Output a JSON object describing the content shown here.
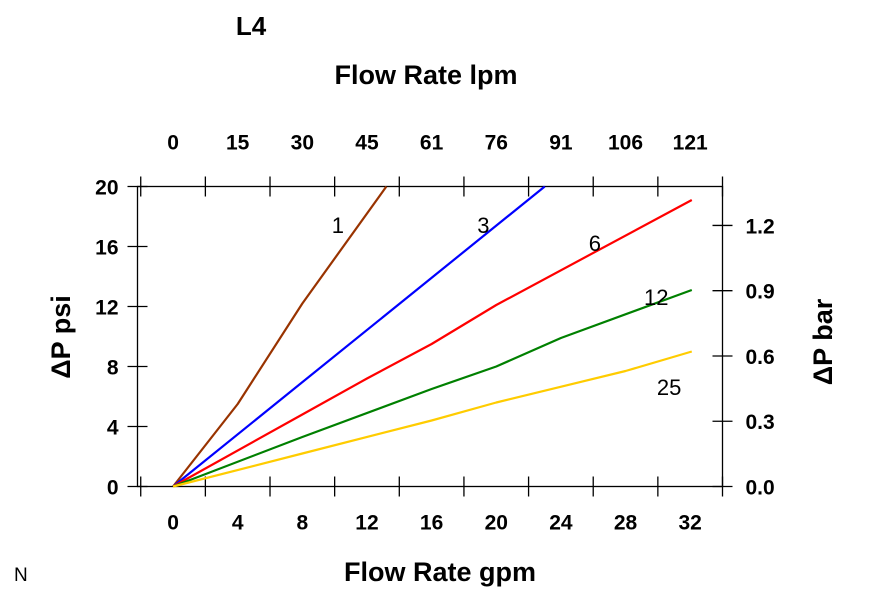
{
  "chart_data": {
    "type": "line",
    "title": "L4",
    "corner_label": "N",
    "xlabel": "Flow Rate gpm",
    "x2label": "Flow Rate lpm",
    "ylabel": "ΔP psi",
    "y2label": "ΔP bar",
    "xlim": [
      -2.2,
      34
    ],
    "ylim": [
      0,
      20
    ],
    "x_ticks": [
      0,
      4,
      8,
      12,
      16,
      20,
      24,
      28,
      32
    ],
    "x_tick_labels": [
      "0",
      "4",
      "8",
      "12",
      "16",
      "20",
      "24",
      "28",
      "32"
    ],
    "x2_tick_labels": [
      "0",
      "15",
      "30",
      "45",
      "61",
      "76",
      "91",
      "106",
      "121"
    ],
    "y_ticks": [
      0,
      4,
      8,
      12,
      16,
      20
    ],
    "y_tick_labels": [
      "0",
      "4",
      "8",
      "12",
      "16",
      "20"
    ],
    "y2_ticks_bar": [
      0.0,
      0.3,
      0.6,
      0.9,
      1.2
    ],
    "y2_tick_labels": [
      "0.0",
      "0.3",
      "0.6",
      "0.9",
      "1.2"
    ],
    "grid": false,
    "series": [
      {
        "name": "1",
        "color": "#993300",
        "x": [
          0,
          4,
          8,
          13.2
        ],
        "y": [
          0,
          5.5,
          12.2,
          20
        ]
      },
      {
        "name": "3",
        "color": "#0000ff",
        "x": [
          0,
          23
        ],
        "y": [
          0,
          20
        ]
      },
      {
        "name": "6",
        "color": "#ff0000",
        "x": [
          0,
          8,
          12,
          16,
          20,
          32.1
        ],
        "y": [
          0,
          4.8,
          7.2,
          9.5,
          12.1,
          19.1
        ]
      },
      {
        "name": "12",
        "color": "#008000",
        "x": [
          0,
          8,
          16,
          20,
          24,
          32.1
        ],
        "y": [
          0,
          3.3,
          6.5,
          8,
          9.9,
          13.1
        ]
      },
      {
        "name": "25",
        "color": "#ffcc00",
        "x": [
          0,
          8,
          16,
          20,
          28,
          32.1
        ],
        "y": [
          0,
          2.2,
          4.4,
          5.6,
          7.7,
          9.0
        ]
      }
    ]
  }
}
